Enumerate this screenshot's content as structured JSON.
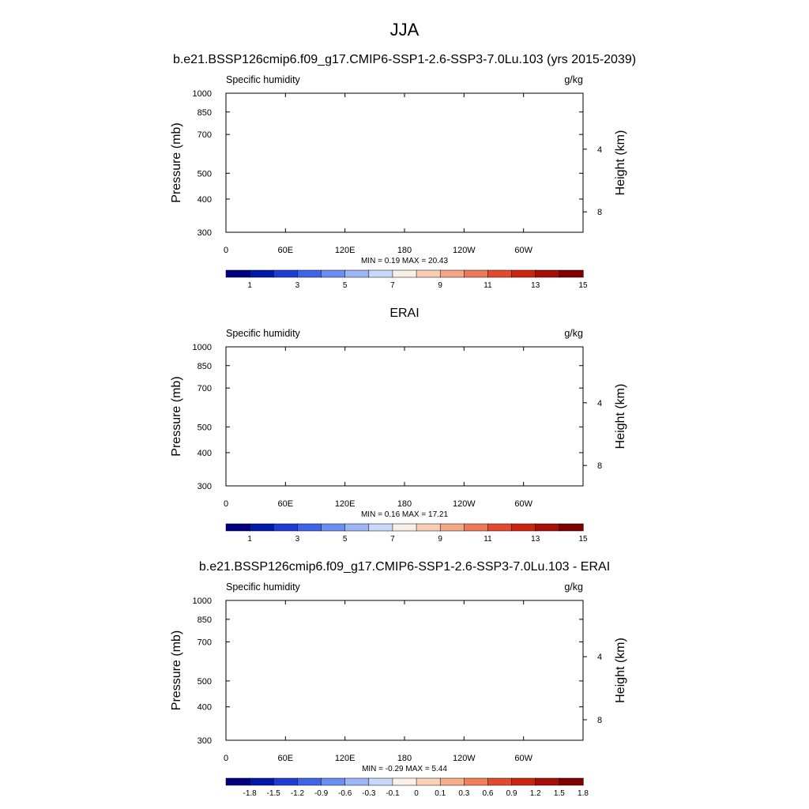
{
  "figure": {
    "title": "JJA"
  },
  "colors": {
    "abs_palette": [
      "#00007f",
      "#0019a8",
      "#1f3dd4",
      "#3f64e8",
      "#6a8ef2",
      "#9cb5f5",
      "#c8d8f8",
      "#f7eee6",
      "#f7cdb5",
      "#f3a688",
      "#ec7a5a",
      "#e24a2e",
      "#c9250f",
      "#a50f07",
      "#7f0000"
    ],
    "diff_palette": [
      "#00007f",
      "#0019a8",
      "#1f3dd4",
      "#3f64e8",
      "#6a8ef2",
      "#9cb5f5",
      "#c8d8f8",
      "#fdf0e6",
      "#fbd3b8",
      "#f7ad8a",
      "#f08058",
      "#e24a2e",
      "#c9250f",
      "#a50f07",
      "#7f0000"
    ]
  },
  "chart_data": [
    {
      "type": "heatmap",
      "title": "b.e21.BSSP126cmip6.f09_g17.CMIP6-SSP1-2.6-SSP3-7.0Lu.103 (yrs 2015-2039)",
      "variable": "Specific humidity",
      "units": "g/kg",
      "ylabel": "Pressure (mb)",
      "ylabel_right": "Height (km)",
      "x_ticks": [
        "0",
        "60E",
        "120E",
        "180",
        "120W",
        "60W"
      ],
      "y_ticks": [
        "300",
        "400",
        "500",
        "700",
        "850",
        "1000"
      ],
      "y_ticks_right": [
        "8",
        "4"
      ],
      "stats": "MIN =   0.19  MAX =  20.43",
      "levels": [
        "1",
        "3",
        "5",
        "7",
        "9",
        "11",
        "13",
        "15"
      ],
      "min": 0.19,
      "max": 20.43,
      "field": "absolute",
      "topography": true
    },
    {
      "type": "heatmap",
      "title": "ERAI",
      "variable": "Specific humidity",
      "units": "g/kg",
      "ylabel": "Pressure (mb)",
      "ylabel_right": "Height (km)",
      "x_ticks": [
        "0",
        "60E",
        "120E",
        "180",
        "120W",
        "60W"
      ],
      "y_ticks": [
        "300",
        "400",
        "500",
        "700",
        "850",
        "1000"
      ],
      "y_ticks_right": [
        "8",
        "4"
      ],
      "stats": "MIN =   0.16  MAX =  17.21",
      "levels": [
        "1",
        "3",
        "5",
        "7",
        "9",
        "11",
        "13",
        "15"
      ],
      "min": 0.16,
      "max": 17.21,
      "field": "absolute",
      "topography": false
    },
    {
      "type": "heatmap",
      "title": "b.e21.BSSP126cmip6.f09_g17.CMIP6-SSP1-2.6-SSP3-7.0Lu.103 - ERAI",
      "variable": "Specific humidity",
      "units": "g/kg",
      "ylabel": "Pressure (mb)",
      "ylabel_right": "Height (km)",
      "x_ticks": [
        "0",
        "60E",
        "120E",
        "180",
        "120W",
        "60W"
      ],
      "y_ticks": [
        "300",
        "400",
        "500",
        "700",
        "850",
        "1000"
      ],
      "y_ticks_right": [
        "8",
        "4"
      ],
      "stats": "MIN =  -0.29  MAX =   5.44",
      "levels": [
        "-1.8",
        "-1.5",
        "-1.2",
        "-0.9",
        "-0.6",
        "-0.3",
        "-0.1",
        "0",
        "0.1",
        "0.3",
        "0.6",
        "0.9",
        "1.2",
        "1.5",
        "1.8"
      ],
      "min": -0.29,
      "max": 5.44,
      "field": "difference",
      "topography": true
    }
  ]
}
